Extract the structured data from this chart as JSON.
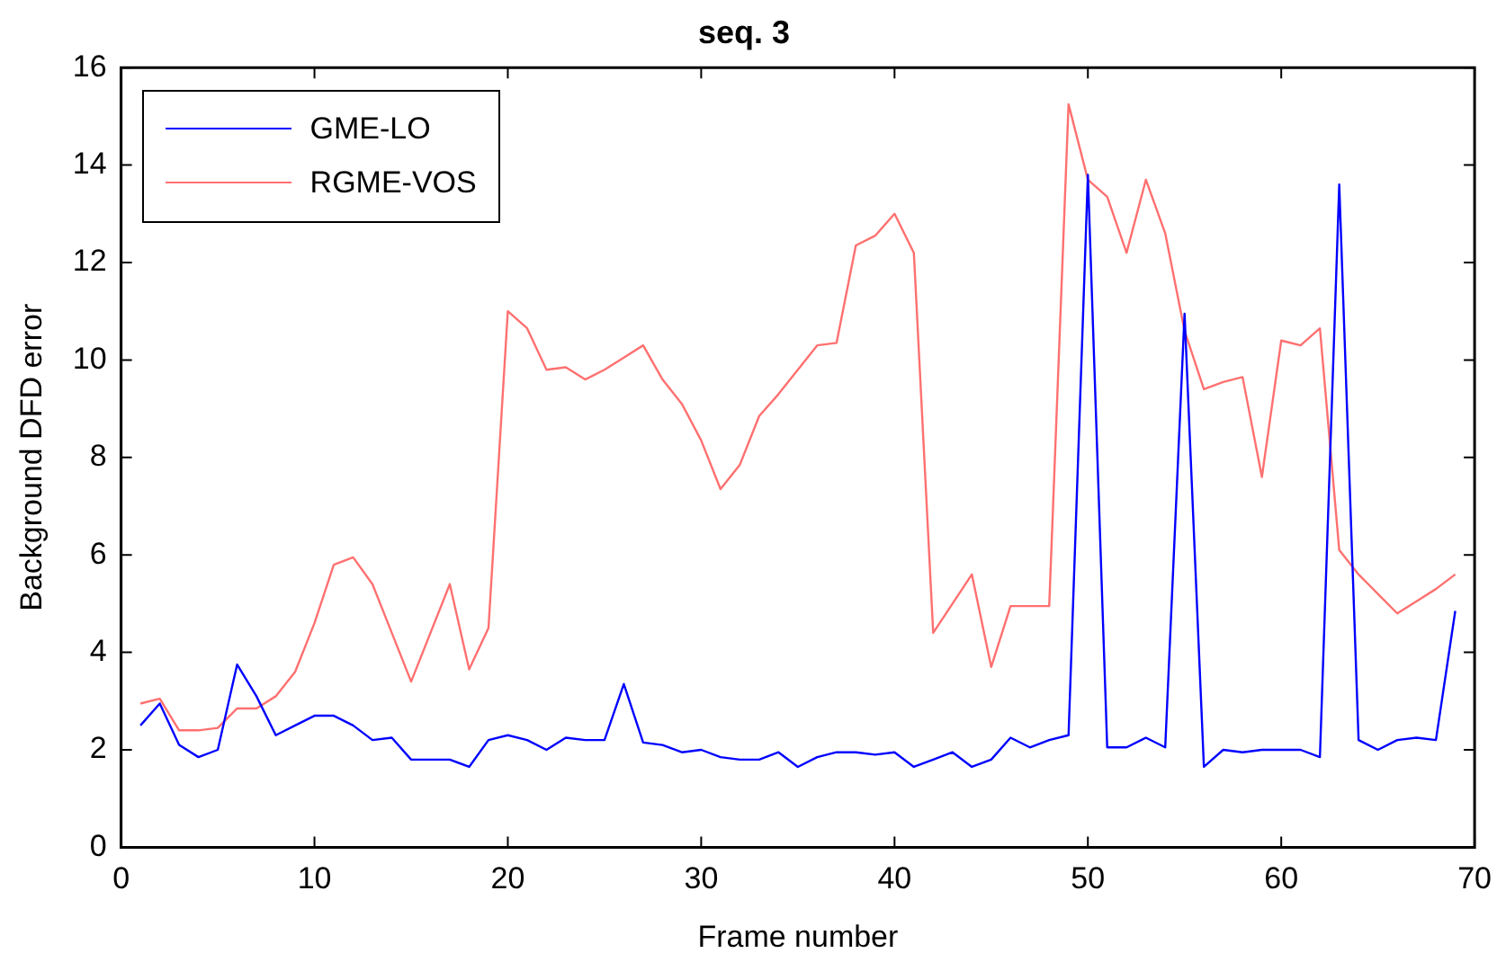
{
  "chart_data": {
    "type": "line",
    "title": "seq. 3",
    "xlabel": "Frame number",
    "ylabel": "Background DFD error",
    "x": [
      1,
      2,
      3,
      4,
      5,
      6,
      7,
      8,
      9,
      10,
      11,
      12,
      13,
      14,
      15,
      16,
      17,
      18,
      19,
      20,
      21,
      22,
      23,
      24,
      25,
      26,
      27,
      28,
      29,
      30,
      31,
      32,
      33,
      34,
      35,
      36,
      37,
      38,
      39,
      40,
      41,
      42,
      43,
      44,
      45,
      46,
      47,
      48,
      49,
      50,
      51,
      52,
      53,
      54,
      55,
      56,
      57,
      58,
      59,
      60,
      61,
      62,
      63,
      64,
      65,
      66,
      67,
      68,
      69
    ],
    "series": [
      {
        "name": "GME-LO",
        "color": "#0000ff",
        "values": [
          2.5,
          2.95,
          2.1,
          1.85,
          2.0,
          3.75,
          3.1,
          2.3,
          2.5,
          2.7,
          2.7,
          2.5,
          2.2,
          2.25,
          1.8,
          1.8,
          1.8,
          1.65,
          2.2,
          2.3,
          2.2,
          2.0,
          2.25,
          2.2,
          2.2,
          3.35,
          2.15,
          2.1,
          1.95,
          2.0,
          1.85,
          1.8,
          1.8,
          1.95,
          1.65,
          1.85,
          1.95,
          1.95,
          1.9,
          1.95,
          1.65,
          1.8,
          1.95,
          1.65,
          1.8,
          2.25,
          2.05,
          2.2,
          2.3,
          13.8,
          2.05,
          2.05,
          2.25,
          2.05,
          10.95,
          1.65,
          2.0,
          1.95,
          2.0,
          2.0,
          2.0,
          1.85,
          13.6,
          2.2,
          2.0,
          2.2,
          2.25,
          2.2,
          4.85
        ]
      },
      {
        "name": "RGME-VOS",
        "color": "#ff7070",
        "values": [
          2.95,
          3.05,
          2.4,
          2.4,
          2.45,
          2.85,
          2.85,
          3.1,
          3.6,
          4.6,
          5.8,
          5.95,
          5.4,
          4.4,
          3.4,
          4.4,
          5.4,
          3.65,
          4.5,
          11.0,
          10.65,
          9.8,
          9.85,
          9.6,
          9.8,
          10.05,
          10.3,
          9.6,
          9.1,
          8.35,
          7.35,
          7.85,
          8.85,
          9.3,
          9.8,
          10.3,
          10.35,
          12.35,
          12.55,
          13.0,
          12.2,
          4.4,
          5.0,
          5.6,
          3.7,
          4.95,
          4.95,
          4.95,
          15.25,
          13.7,
          13.35,
          12.2,
          13.7,
          12.6,
          10.6,
          9.4,
          9.55,
          9.65,
          7.6,
          10.4,
          10.3,
          10.65,
          6.1,
          5.6,
          5.2,
          4.8,
          5.05,
          5.3,
          5.6
        ]
      }
    ],
    "xlim": [
      0,
      70
    ],
    "xticks": [
      0,
      10,
      20,
      30,
      40,
      50,
      60,
      70
    ],
    "ylim": [
      0,
      16
    ],
    "yticks": [
      0,
      2,
      4,
      6,
      8,
      10,
      12,
      14,
      16
    ],
    "grid": false,
    "legend": "top left",
    "marker": "none",
    "line_style": "solid"
  }
}
